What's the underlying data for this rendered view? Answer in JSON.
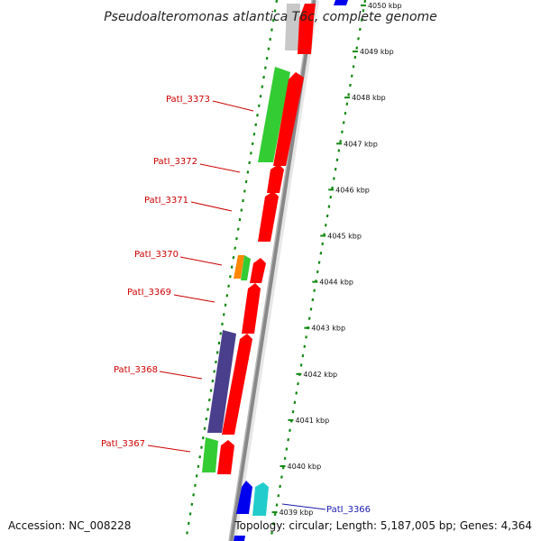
{
  "title": "Pseudoalteromonas atlantica T6c, complete genome",
  "accession": "Accession: NC_008228",
  "topology": "Topology: circular; Length: 5,187,005 bp; Genes: 4,364",
  "colors": {
    "forward_gene": "#ff0000",
    "reverse_green": "#33cc33",
    "reverse_purple": "#4a3f8c",
    "reverse_gray": "#c8c8c8",
    "reverse_orange": "#ff8800",
    "blue_gene": "#0000ee",
    "cyan_gene": "#22cccc",
    "gc_ticks": "#118811",
    "label_red": "#cc0000",
    "label_blue": "#1a1ab0"
  },
  "ticks": [
    {
      "label": "4050 kbp",
      "kbp": 4050
    },
    {
      "label": "4049 kbp",
      "kbp": 4049
    },
    {
      "label": "4048 kbp",
      "kbp": 4048
    },
    {
      "label": "4047 kbp",
      "kbp": 4047
    },
    {
      "label": "4046 kbp",
      "kbp": 4046
    },
    {
      "label": "4045 kbp",
      "kbp": 4045
    },
    {
      "label": "4044 kbp",
      "kbp": 4044
    },
    {
      "label": "4043 kbp",
      "kbp": 4043
    },
    {
      "label": "4042 kbp",
      "kbp": 4042
    },
    {
      "label": "4041 kbp",
      "kbp": 4041
    },
    {
      "label": "4040 kbp",
      "kbp": 4040
    },
    {
      "label": "4039 kbp",
      "kbp": 4039
    }
  ],
  "labels": [
    {
      "text": "PatI_3373",
      "color": "red"
    },
    {
      "text": "PatI_3372",
      "color": "red"
    },
    {
      "text": "PatI_3371",
      "color": "red"
    },
    {
      "text": "PatI_3370",
      "color": "red"
    },
    {
      "text": "PatI_3369",
      "color": "red"
    },
    {
      "text": "PatI_3368",
      "color": "red"
    },
    {
      "text": "PatI_3367",
      "color": "red"
    },
    {
      "text": "PatI_3366",
      "color": "blue"
    }
  ]
}
